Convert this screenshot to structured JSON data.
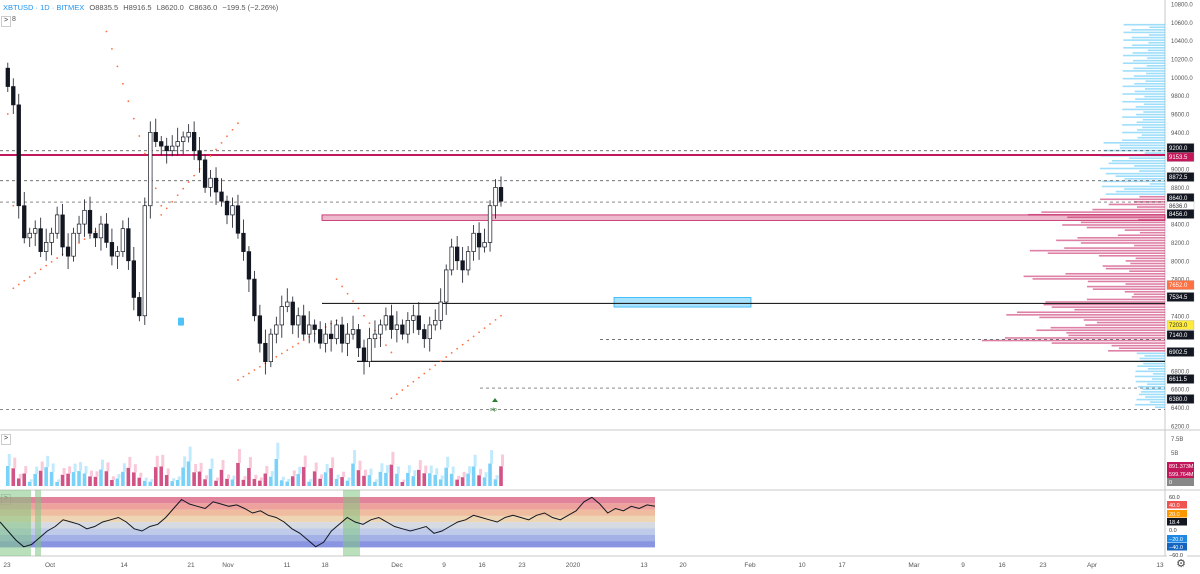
{
  "header": {
    "symbol": "XBTUSD · 1D · BITMEX",
    "open": "O8835.5",
    "high": "H8916.5",
    "low": "L8620.0",
    "close": "C8636.0",
    "change": "−199.5 (−2.26%)",
    "collapse_label": ">",
    "count_label": "8"
  },
  "price_axis": {
    "labels": [
      "10800.0",
      "10600.0",
      "10400.0",
      "10200.0",
      "10000.0",
      "9800.0",
      "9600.0",
      "9400.0",
      "9200.0",
      "9000.0",
      "8800.0",
      "8600.0",
      "8400.0",
      "8200.0",
      "8000.0",
      "7800.0",
      "7600.0",
      "7400.0",
      "7200.0",
      "7000.0",
      "6800.0",
      "6600.0",
      "6400.0",
      "6200.0"
    ],
    "marked_levels": [
      {
        "label": "9200.0",
        "bg": "#131722",
        "fg": "#ffffff"
      },
      {
        "label": "9153.5",
        "bg": "#c2185b",
        "fg": "#ffffff"
      },
      {
        "label": "8872.5",
        "bg": "#131722",
        "fg": "#ffffff"
      },
      {
        "label": "8640.0",
        "bg": "#131722",
        "fg": "#ffffff"
      },
      {
        "label": "8636.0",
        "bg": "#ffffff",
        "fg": "#333333"
      },
      {
        "label": "8456.0",
        "bg": "#131722",
        "fg": "#ffffff"
      },
      {
        "label": "7652.0",
        "bg": "#ff7043",
        "fg": "#ffffff"
      },
      {
        "label": "7534.5",
        "bg": "#131722",
        "fg": "#ffffff"
      },
      {
        "label": "7203.0",
        "bg": "#ffeb3b",
        "fg": "#333333"
      },
      {
        "label": "7140.0",
        "bg": "#131722",
        "fg": "#ffffff"
      },
      {
        "label": "6902.5",
        "bg": "#131722",
        "fg": "#ffffff"
      },
      {
        "label": "6611.5",
        "bg": "#131722",
        "fg": "#ffffff"
      },
      {
        "label": "6380.0",
        "bg": "#131722",
        "fg": "#ffffff"
      }
    ]
  },
  "volume_axis": {
    "labels": [
      "7.5B",
      "5B"
    ],
    "marked": [
      {
        "label": "891.373M",
        "bg": "#c2185b",
        "fg": "#ffffff"
      },
      {
        "label": "599.764M",
        "bg": "#c2185b",
        "fg": "#ffffff"
      },
      {
        "label": "0",
        "bg": "#888888",
        "fg": "#ffffff"
      }
    ],
    "collapse_label": ">"
  },
  "osc_axis": {
    "marked": [
      {
        "label": "60.0",
        "bg": "#ffffff",
        "fg": "#333333"
      },
      {
        "label": "40.0",
        "bg": "#ef5350",
        "fg": "#ffffff"
      },
      {
        "label": "20.0",
        "bg": "#ff9800",
        "fg": "#ffffff"
      },
      {
        "label": "18.4",
        "bg": "#131722",
        "fg": "#ffffff"
      },
      {
        "label": "0.0",
        "bg": "#ffffff",
        "fg": "#333333"
      },
      {
        "label": "−20.0",
        "bg": "#1e88e5",
        "fg": "#ffffff"
      },
      {
        "label": "−40.0",
        "bg": "#1565c0",
        "fg": "#ffffff"
      },
      {
        "label": "−60.0",
        "bg": "#ffffff",
        "fg": "#333333"
      }
    ],
    "collapse_label": ">"
  },
  "time_axis": {
    "labels": [
      "23",
      "Oct",
      "14",
      "21",
      "Nov",
      "11",
      "18",
      "Dec",
      "9",
      "16",
      "23",
      "2020",
      "13",
      "20",
      "Feb",
      "10",
      "17",
      "Mar",
      "9",
      "16",
      "23",
      "Apr",
      "13"
    ]
  },
  "annotations": {
    "signal_label": "stp"
  },
  "colors": {
    "up_candle": "#ffffff",
    "down_candle": "#131722",
    "level_line": "#c2185b",
    "zone_pink": "#c2185b",
    "zone_blue": "#4fc3f7",
    "sar_dots": "#ff7043",
    "volume_profile_down": "#c2185b",
    "volume_profile_up": "#4fc3f7"
  },
  "icons": {
    "settings": "gear-icon"
  }
}
